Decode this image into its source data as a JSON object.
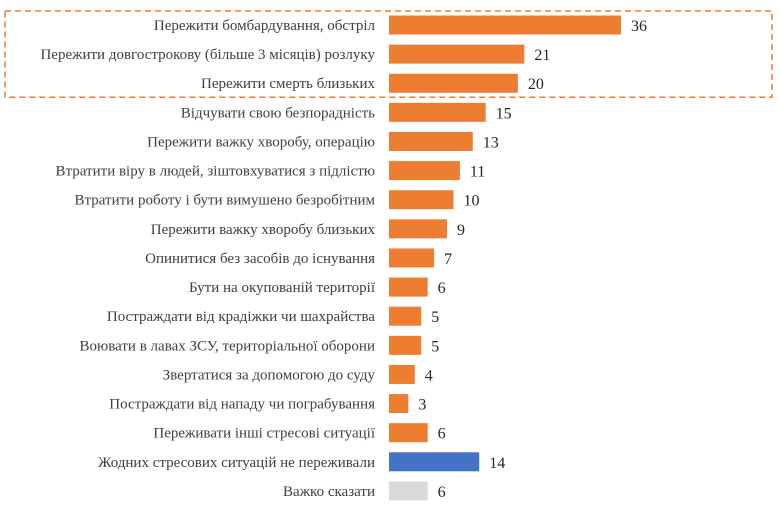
{
  "chart_data": {
    "type": "bar",
    "orientation": "horizontal",
    "categories": [
      "Пережити бомбардування, обстріл",
      "Пережити довгострокову (більше 3 місяців) розлуку",
      "Пережити смерть близьких",
      "Відчувати свою безпорадність",
      "Пережити важку хворобу, операцію",
      "Втратити віру в людей, зіштовхуватися з підлістю",
      "Втратити роботу і бути вимушено безробітним",
      "Пережити важку хворобу близьких",
      "Опинитися без засобів до існування",
      "Бути на окупованій території",
      "Постраждати від крадіжки чи шахрайства",
      "Воювати в лавах ЗСУ, територіальної оборони",
      "Звертатися за допомогою до суду",
      "Постраждати від нападу чи пограбування",
      "Переживати інші стресові ситуації",
      "Жодних стресових ситуацій не переживали",
      "Важко сказати"
    ],
    "values": [
      36,
      21,
      20,
      15,
      13,
      11,
      10,
      9,
      7,
      6,
      5,
      5,
      4,
      3,
      6,
      14,
      6
    ],
    "bar_colors": [
      "#ED7D31",
      "#ED7D31",
      "#ED7D31",
      "#ED7D31",
      "#ED7D31",
      "#ED7D31",
      "#ED7D31",
      "#ED7D31",
      "#ED7D31",
      "#ED7D31",
      "#ED7D31",
      "#ED7D31",
      "#ED7D31",
      "#ED7D31",
      "#ED7D31",
      "#4472C4",
      "#D9D9D9"
    ],
    "highlighted_categories": [
      0,
      1,
      2
    ],
    "highlight_color": "#ED7D31",
    "data_labels": true,
    "grid": false,
    "xlim": [
      0,
      36
    ]
  }
}
